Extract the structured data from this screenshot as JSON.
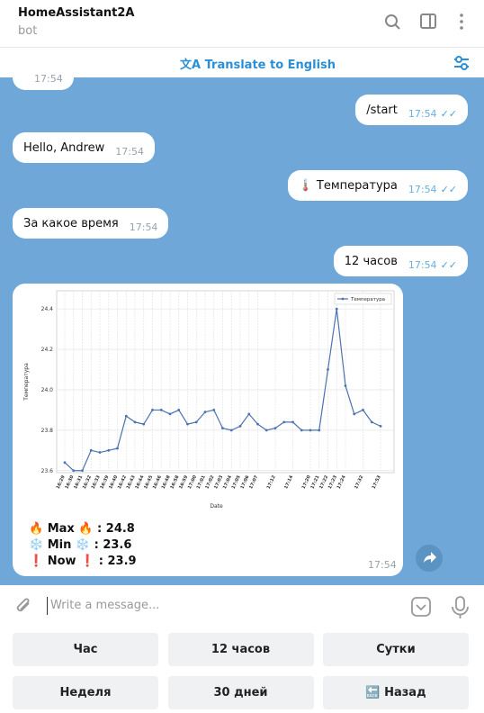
{
  "header": {
    "title": "HomeAssistant2A",
    "subtitle": "bot"
  },
  "translate": "Translate to English",
  "messages": [
    {
      "side": "in",
      "time": "17:54"
    },
    {
      "side": "out",
      "text": "/start",
      "time": "17:54"
    },
    {
      "side": "in",
      "text": "Hello, Andrew",
      "time": "17:54"
    },
    {
      "side": "out",
      "text": "🌡️ Температура",
      "time": "17:54"
    },
    {
      "side": "in",
      "text": "За какое время",
      "time": "17:54"
    },
    {
      "side": "out",
      "text": "12 часов",
      "time": "17:54"
    }
  ],
  "photo_message": {
    "lines": [
      "🔥 Max 🔥 : 24.8",
      "❄️ Min ❄️ : 23.6",
      "❗ Now ❗ : 23.9"
    ],
    "time": "17:54"
  },
  "chart_data": {
    "type": "line",
    "ylabel": "Температура",
    "xlabel": "Date",
    "legend": "top-right",
    "grid": true,
    "categories": [
      "16:29",
      "16:30",
      "16:31",
      "16:32",
      "16:33",
      "16:39",
      "16:40",
      "16:42",
      "16:43",
      "16:44",
      "16:45",
      "16:46",
      "16:48",
      "16:58",
      "16:59",
      "17:00",
      "17:01",
      "17:02",
      "17:03",
      "17:04",
      "17:05",
      "17:06",
      "17:07",
      null,
      "17:12",
      null,
      "17:14",
      null,
      "17:20",
      "17:21",
      "17:22",
      "17:23",
      "17:24",
      null,
      "17:32",
      null,
      "17:53"
    ],
    "series": [
      {
        "name": "Температура",
        "color": "#4c72b0",
        "values": [
          23.64,
          23.6,
          23.6,
          23.7,
          23.69,
          23.7,
          23.71,
          23.87,
          23.84,
          23.83,
          23.9,
          23.9,
          23.88,
          23.9,
          23.83,
          23.84,
          23.89,
          23.9,
          23.81,
          23.8,
          23.82,
          23.88,
          23.83,
          23.8,
          23.81,
          23.84,
          23.84,
          23.8,
          23.8,
          23.8,
          24.1,
          24.4,
          24.02,
          23.88,
          23.9,
          23.84,
          23.82
        ]
      }
    ],
    "ylim": [
      23.59,
      24.49
    ],
    "yticks": [
      23.6,
      23.8,
      {
        "value": 24,
        "label": "24.0"
      },
      24.2,
      24.4
    ]
  },
  "input": {
    "placeholder": "Write a message..."
  },
  "keyboard": [
    [
      "Час",
      "12 часов",
      "Сутки"
    ],
    [
      "Неделя",
      "30 дней",
      "🔙 Назад"
    ]
  ]
}
